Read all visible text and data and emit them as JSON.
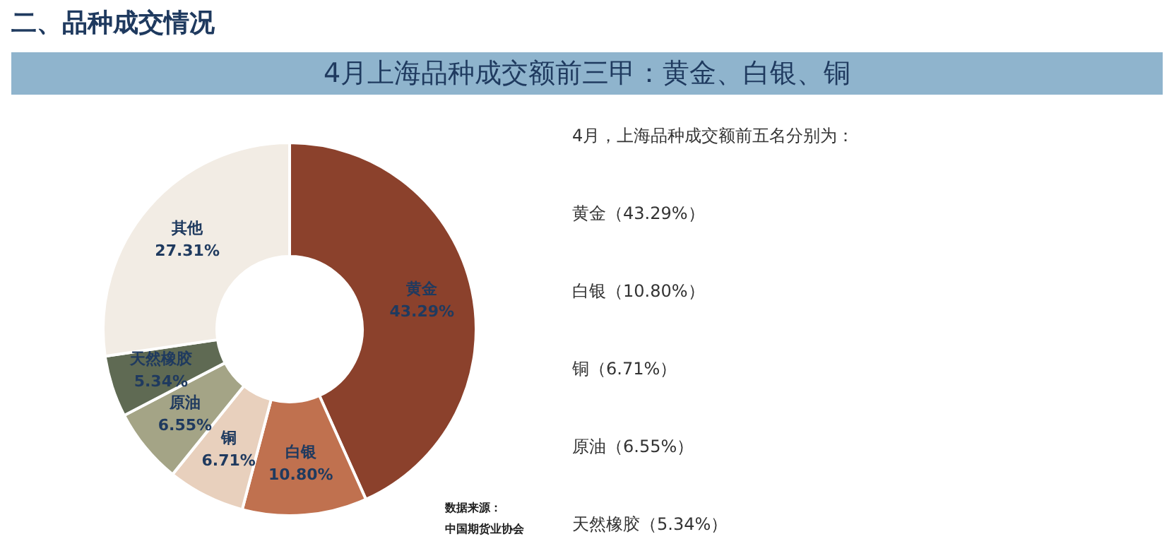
{
  "chart_data": {
    "type": "donut",
    "title": "二、品种成交情况",
    "subtitle": "4月上海品种成交额前三甲：黄金、白银、铜",
    "categories": [
      "黄金",
      "白银",
      "铜",
      "原油",
      "天然橡胶",
      "其他"
    ],
    "values": [
      43.29,
      10.8,
      6.71,
      6.55,
      5.34,
      27.31
    ],
    "colors": [
      "#8b412c",
      "#c0714f",
      "#e8d0bd",
      "#a4a486",
      "#5f6a53",
      "#f2ece4"
    ],
    "value_labels": [
      "43.29%",
      "10.80%",
      "6.71%",
      "6.55%",
      "5.34%",
      "27.31%"
    ],
    "legend": false,
    "annotations": [
      "4月，上海品种成交额前五名分别为：",
      "黄金（43.29%）",
      "白银（10.80%）",
      "铜（6.71%）",
      "原油（6.55%）",
      "天然橡胶（5.34%）",
      "数据来源：",
      "中国期货业协会"
    ]
  }
}
